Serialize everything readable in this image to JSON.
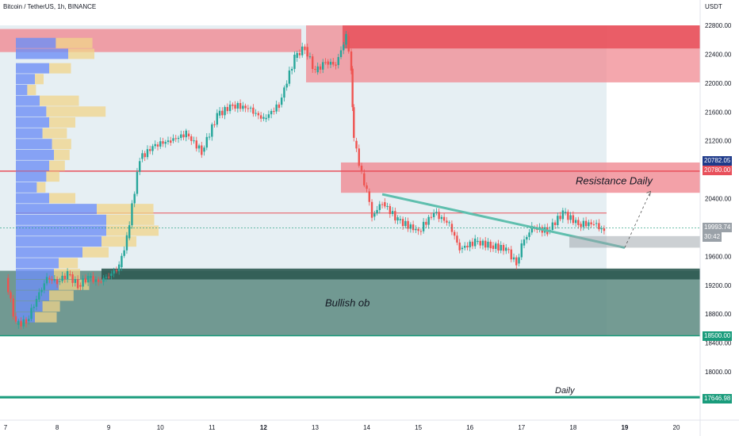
{
  "header": {
    "title": "Bitcoin / TetherUS, 1h, BINANCE",
    "unit": "USDT"
  },
  "colors": {
    "bg": "#ffffff",
    "plot_bg": "#e6eff3",
    "resistance": "#e8505b",
    "resistance_fill": "#f08a92",
    "bullish_ob": "#5c8a80",
    "bullish_ob_edge": "#2e5a52",
    "trendline": "#5fbfae",
    "daily_line": "#1a9c7c",
    "vp_blue": "#6e8ff5",
    "vp_yellow": "#f0d48a",
    "candle_up": "#26a69a",
    "candle_down": "#ef5350",
    "current_gray": "#9aa1a8"
  },
  "annotations": {
    "resistance": "Resistance Daily",
    "bullish": "Bullish ob",
    "daily": "Daily"
  },
  "price_tags": {
    "resistance_top": "20782.05",
    "resistance_line": "20780.00",
    "current_price": "19993.74",
    "countdown": "30:42",
    "ob_bottom": "18500.00",
    "daily_level": "17646.98"
  },
  "chart_data": {
    "type": "candlestick",
    "title": "Bitcoin / TetherUS, 1h, BINANCE",
    "ylabel": "USDT",
    "ylim": [
      17400,
      23100
    ],
    "y_ticks": [
      22800,
      22400,
      22000,
      21600,
      21200,
      20400,
      19600,
      19200,
      18800,
      18400,
      18000
    ],
    "x_ticks": [
      "7",
      "8",
      "9",
      "10",
      "11",
      "12",
      "13",
      "14",
      "15",
      "16",
      "17",
      "18",
      "19",
      "20"
    ],
    "x_range_days": [
      7,
      20
    ],
    "price_path": [
      [
        7.0,
        19300
      ],
      [
        7.2,
        18650
      ],
      [
        7.4,
        18700
      ],
      [
        7.6,
        19000
      ],
      [
        7.8,
        19300
      ],
      [
        8.0,
        19250
      ],
      [
        8.2,
        19350
      ],
      [
        8.4,
        19200
      ],
      [
        8.6,
        19300
      ],
      [
        8.8,
        19250
      ],
      [
        9.0,
        19330
      ],
      [
        9.2,
        19450
      ],
      [
        9.35,
        19850
      ],
      [
        9.6,
        20950
      ],
      [
        9.9,
        21150
      ],
      [
        10.2,
        21200
      ],
      [
        10.5,
        21300
      ],
      [
        10.8,
        21050
      ],
      [
        11.1,
        21550
      ],
      [
        11.4,
        21700
      ],
      [
        11.7,
        21650
      ],
      [
        12.0,
        21500
      ],
      [
        12.3,
        21700
      ],
      [
        12.6,
        22350
      ],
      [
        12.8,
        22500
      ],
      [
        13.0,
        22150
      ],
      [
        13.2,
        22300
      ],
      [
        13.4,
        22250
      ],
      [
        13.6,
        22650
      ],
      [
        13.7,
        22200
      ],
      [
        13.75,
        21200
      ],
      [
        13.9,
        20750
      ],
      [
        14.0,
        20500
      ],
      [
        14.1,
        20150
      ],
      [
        14.3,
        20350
      ],
      [
        14.6,
        20100
      ],
      [
        15.0,
        19950
      ],
      [
        15.3,
        20200
      ],
      [
        15.6,
        20050
      ],
      [
        15.8,
        19700
      ],
      [
        16.1,
        19800
      ],
      [
        16.4,
        19750
      ],
      [
        16.7,
        19700
      ],
      [
        16.9,
        19500
      ],
      [
        17.0,
        19750
      ],
      [
        17.2,
        20000
      ],
      [
        17.5,
        19950
      ],
      [
        17.8,
        20200
      ],
      [
        18.1,
        20050
      ],
      [
        18.4,
        20050
      ],
      [
        18.6,
        19950
      ]
    ],
    "levels": [
      {
        "name": "Resistance Daily",
        "type": "zone",
        "ymin": 20480,
        "ymax": 20900,
        "x_start": 13.5
      },
      {
        "name": "Resistance line",
        "type": "line",
        "y": 20780
      },
      {
        "name": "Supply zone",
        "type": "zone",
        "ymin": 22000,
        "ymax": 22800,
        "x_start": 12.8
      },
      {
        "name": "Bullish ob",
        "type": "zone",
        "ymin": 18500,
        "ymax": 19400
      },
      {
        "name": "Daily",
        "type": "line",
        "y": 17646.98
      },
      {
        "name": "Horizontal",
        "type": "line",
        "y": 20200
      }
    ],
    "trendline": {
      "from": [
        14.3,
        20460
      ],
      "to": [
        19.0,
        19720
      ]
    },
    "volume_profile_prices": [
      22550,
      22400,
      22200,
      22050,
      21900,
      21750,
      21600,
      21450,
      21300,
      21150,
      21000,
      20850,
      20700,
      20550,
      20400,
      20250,
      20100,
      19950,
      19800,
      19650,
      19500,
      19350,
      19200,
      19050,
      18900,
      18750
    ],
    "volume_profile_buy": [
      0.42,
      0.55,
      0.35,
      0.2,
      0.12,
      0.25,
      0.32,
      0.35,
      0.28,
      0.38,
      0.4,
      0.35,
      0.32,
      0.22,
      0.35,
      0.85,
      0.95,
      0.95,
      0.9,
      0.7,
      0.45,
      0.4,
      0.45,
      0.35,
      0.28,
      0.2
    ],
    "volume_profile_sell": [
      0.42,
      0.3,
      0.25,
      0.1,
      0.1,
      0.45,
      0.68,
      0.3,
      0.28,
      0.22,
      0.18,
      0.18,
      0.15,
      0.1,
      0.3,
      0.65,
      0.55,
      0.6,
      0.4,
      0.3,
      0.22,
      0.3,
      0.35,
      0.28,
      0.2,
      0.25
    ]
  }
}
